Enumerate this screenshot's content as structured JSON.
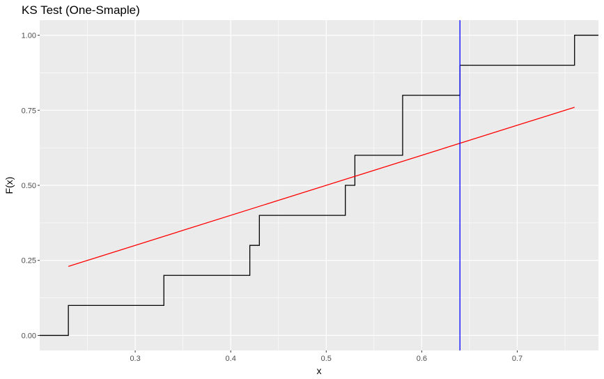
{
  "chart_data": {
    "type": "line",
    "title": "KS Test (One-Smaple)",
    "xlabel": "x",
    "ylabel": "F(x)",
    "xlim": [
      0.2,
      0.785
    ],
    "ylim": [
      -0.05,
      1.05
    ],
    "x_ticks": [
      0.3,
      0.4,
      0.5,
      0.6,
      0.7
    ],
    "x_tick_labels": [
      "0.3",
      "0.4",
      "0.5",
      "0.6",
      "0.7"
    ],
    "y_ticks": [
      0.0,
      0.25,
      0.5,
      0.75,
      1.0
    ],
    "y_tick_labels": [
      "0.00",
      "0.25",
      "0.50",
      "0.75",
      "1.00"
    ],
    "grid": true,
    "legend": "none",
    "colors": {
      "panel": "#ebebeb",
      "grid_major": "#ffffff",
      "ecdf": "#000000",
      "theoretical": "#ff0000",
      "max_distance": "#0000ff"
    },
    "series": [
      {
        "kind": "step",
        "x": [
          0.23,
          0.33,
          0.42,
          0.43,
          0.52,
          0.53,
          0.58,
          0.64,
          0.76
        ],
        "y": [
          0.1,
          0.2,
          0.3,
          0.4,
          0.5,
          0.6,
          0.8,
          0.9,
          1.0
        ],
        "start_y": 0.0
      },
      {
        "kind": "line",
        "x": [
          0.23,
          0.76
        ],
        "y": [
          0.23,
          0.76
        ]
      }
    ],
    "vline_x": 0.64
  }
}
